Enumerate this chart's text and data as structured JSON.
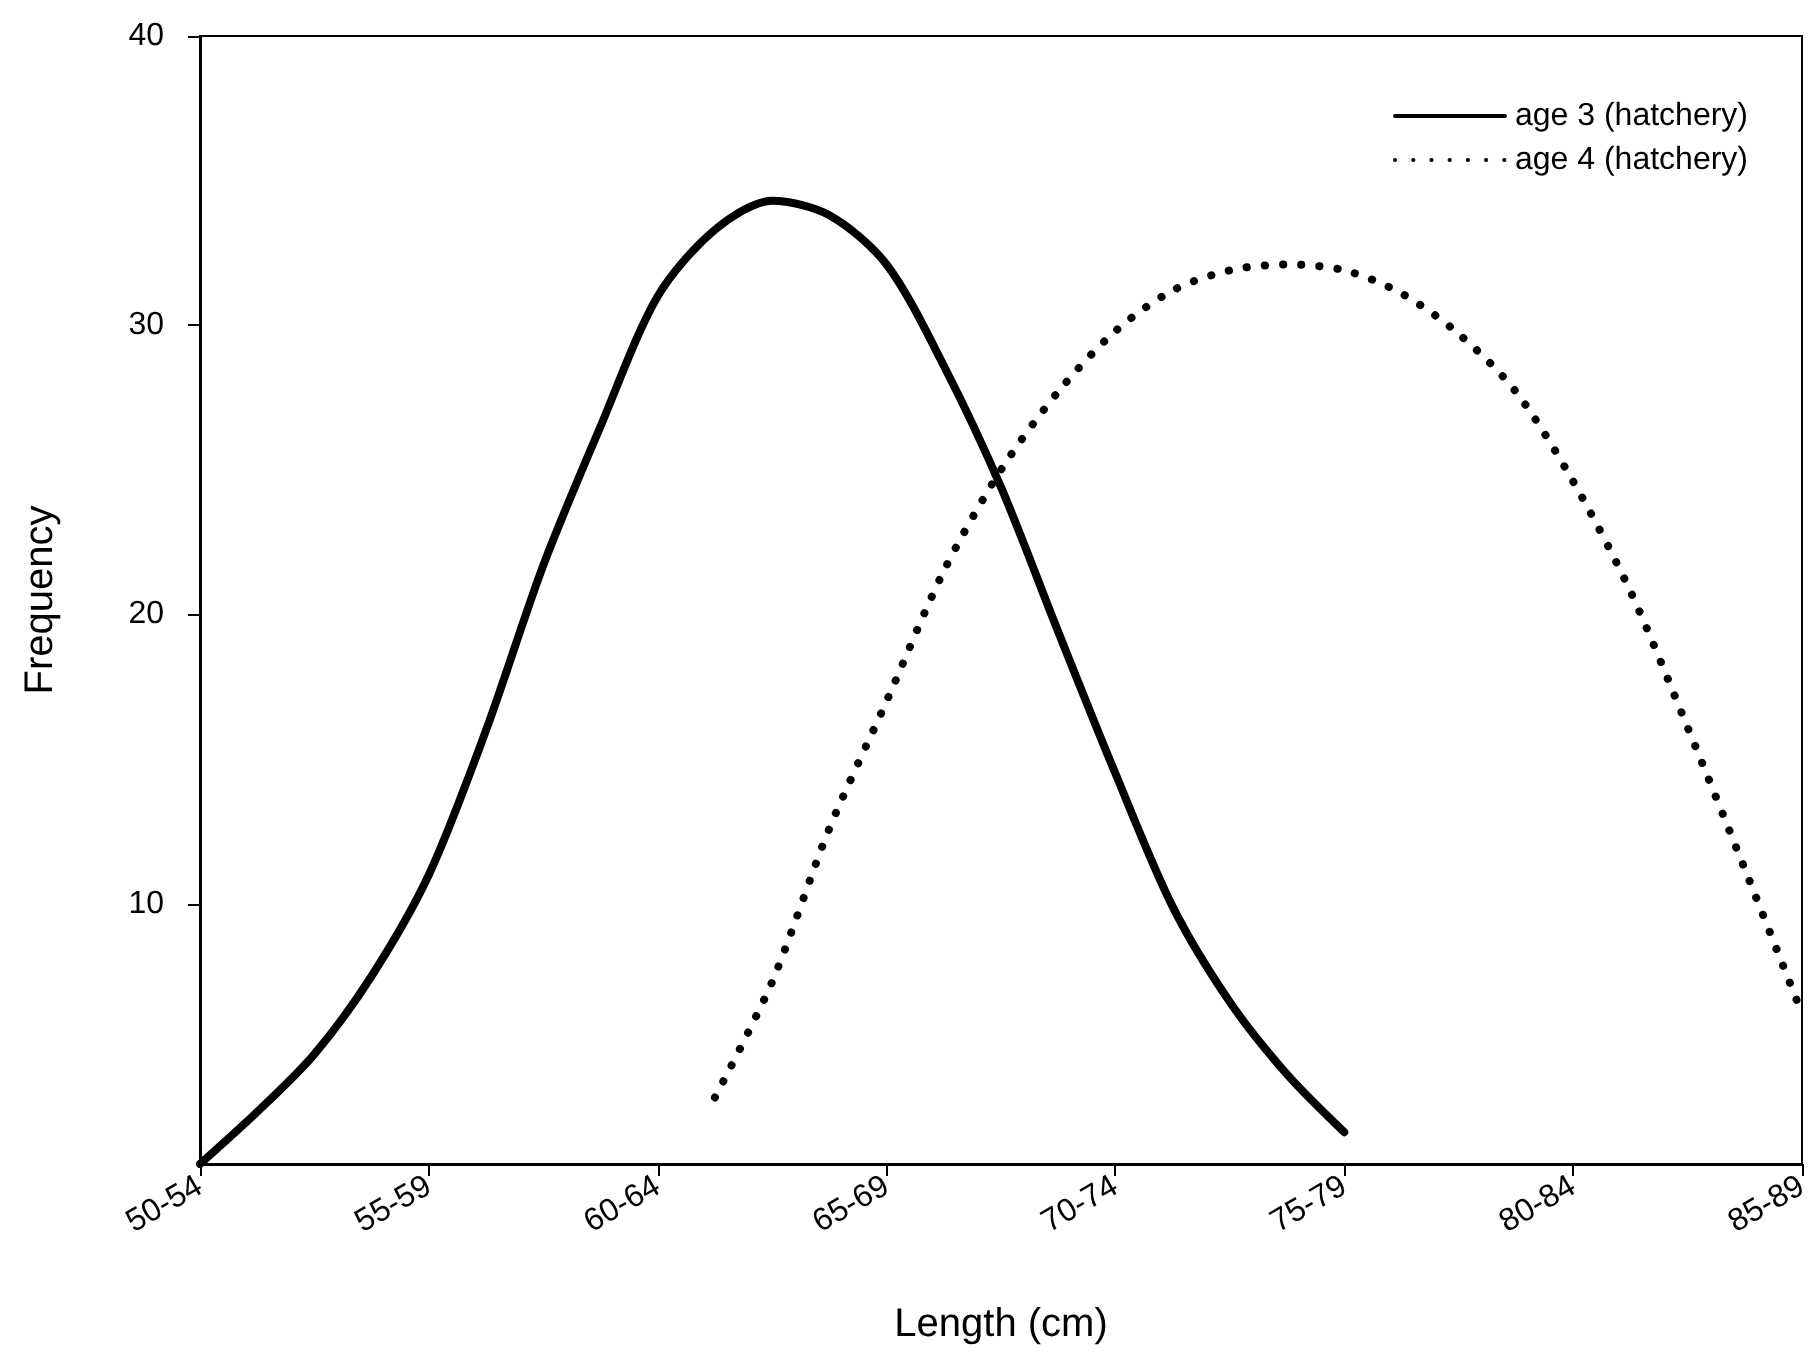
{
  "chart_data": {
    "type": "line",
    "xlabel": "Length (cm)",
    "ylabel": "Frequency",
    "categories": [
      "50-54",
      null,
      null,
      null,
      "55-59",
      null,
      null,
      null,
      "60-64",
      null,
      null,
      null,
      "65-69",
      null,
      null,
      null,
      "70-74",
      null,
      null,
      null,
      "75-79",
      null,
      null,
      null,
      "80-84",
      null,
      null,
      null,
      "85-89"
    ],
    "ylim": [
      1,
      40
    ],
    "yticks": [
      10,
      20,
      30,
      40
    ],
    "grid": false,
    "legend": "top right",
    "marker": "none",
    "series": [
      {
        "name": "age 3 (hatchery)",
        "color": "#000000",
        "line_style": "solid",
        "values": [
          1.0,
          2.8,
          4.8,
          7.5,
          11,
          16,
          21.7,
          26.5,
          31,
          33.3,
          34.3,
          33.8,
          32.1,
          28.6,
          24.4,
          19.4,
          14.5,
          9.9,
          6.6,
          4.1,
          2.1,
          null,
          null,
          null,
          null,
          null,
          null,
          null,
          null
        ]
      },
      {
        "name": "age 4 (hatchery)",
        "color": "#000000",
        "line_style": "dotted",
        "values": [
          null,
          null,
          null,
          null,
          null,
          null,
          null,
          null,
          null,
          3.3,
          7.3,
          12.6,
          17.0,
          21.5,
          25.0,
          27.7,
          29.8,
          31.2,
          31.9,
          32.1,
          31.9,
          31.1,
          29.7,
          27.7,
          24.6,
          20.8,
          16.1,
          11.2,
          6.2
        ]
      }
    ]
  }
}
